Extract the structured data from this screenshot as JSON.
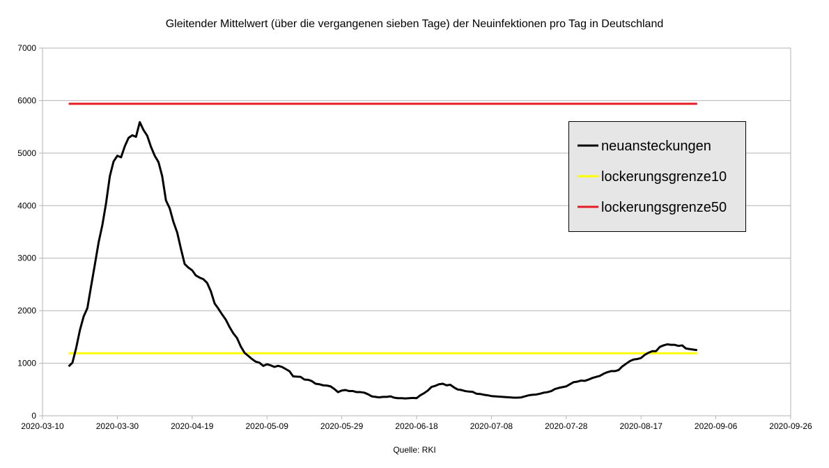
{
  "chart_data": {
    "type": "line",
    "title": "Gleitender Mittelwert (über die vergangenen sieben Tage) der Neuinfektionen pro Tag in Deutschland",
    "source": "Quelle: RKI",
    "xlabel": "",
    "ylabel": "",
    "xlim": [
      "2020-03-10",
      "2020-09-26"
    ],
    "ylim": [
      0,
      7000
    ],
    "x_ticks": [
      "2020-03-10",
      "2020-03-30",
      "2020-04-19",
      "2020-05-09",
      "2020-05-29",
      "2020-06-18",
      "2020-07-08",
      "2020-07-28",
      "2020-08-17",
      "2020-09-06",
      "2020-09-26"
    ],
    "y_ticks": [
      "0",
      "1000",
      "2000",
      "3000",
      "4000",
      "5000",
      "6000",
      "7000"
    ],
    "grid": "horizontal",
    "legend_position": "right",
    "series": [
      {
        "name": "neuansteckungen",
        "color": "#000000",
        "points": [
          [
            "2020-03-17",
            940
          ],
          [
            "2020-03-18",
            1010
          ],
          [
            "2020-03-19",
            1290
          ],
          [
            "2020-03-20",
            1630
          ],
          [
            "2020-03-21",
            1890
          ],
          [
            "2020-03-22",
            2050
          ],
          [
            "2020-03-23",
            2470
          ],
          [
            "2020-03-24",
            2880
          ],
          [
            "2020-03-25",
            3300
          ],
          [
            "2020-03-26",
            3630
          ],
          [
            "2020-03-27",
            4050
          ],
          [
            "2020-03-28",
            4560
          ],
          [
            "2020-03-29",
            4840
          ],
          [
            "2020-03-30",
            4950
          ],
          [
            "2020-03-31",
            4920
          ],
          [
            "2020-04-01",
            5130
          ],
          [
            "2020-04-02",
            5290
          ],
          [
            "2020-04-03",
            5340
          ],
          [
            "2020-04-04",
            5310
          ],
          [
            "2020-04-05",
            5590
          ],
          [
            "2020-04-06",
            5440
          ],
          [
            "2020-04-07",
            5330
          ],
          [
            "2020-04-08",
            5120
          ],
          [
            "2020-04-09",
            4950
          ],
          [
            "2020-04-10",
            4830
          ],
          [
            "2020-04-11",
            4560
          ],
          [
            "2020-04-12",
            4100
          ],
          [
            "2020-04-13",
            3950
          ],
          [
            "2020-04-14",
            3690
          ],
          [
            "2020-04-15",
            3490
          ],
          [
            "2020-04-16",
            3180
          ],
          [
            "2020-04-17",
            2890
          ],
          [
            "2020-04-18",
            2820
          ],
          [
            "2020-04-19",
            2770
          ],
          [
            "2020-04-20",
            2670
          ],
          [
            "2020-04-21",
            2630
          ],
          [
            "2020-04-22",
            2600
          ],
          [
            "2020-04-23",
            2530
          ],
          [
            "2020-04-24",
            2370
          ],
          [
            "2020-04-25",
            2140
          ],
          [
            "2020-04-26",
            2040
          ],
          [
            "2020-04-27",
            1930
          ],
          [
            "2020-04-28",
            1830
          ],
          [
            "2020-04-29",
            1690
          ],
          [
            "2020-04-30",
            1570
          ],
          [
            "2020-05-01",
            1480
          ],
          [
            "2020-05-02",
            1320
          ],
          [
            "2020-05-03",
            1200
          ],
          [
            "2020-05-04",
            1140
          ],
          [
            "2020-05-05",
            1080
          ],
          [
            "2020-05-06",
            1030
          ],
          [
            "2020-05-07",
            1010
          ],
          [
            "2020-05-08",
            950
          ],
          [
            "2020-05-09",
            980
          ],
          [
            "2020-05-10",
            960
          ],
          [
            "2020-05-11",
            930
          ],
          [
            "2020-05-12",
            950
          ],
          [
            "2020-05-13",
            930
          ],
          [
            "2020-05-14",
            890
          ],
          [
            "2020-05-15",
            850
          ],
          [
            "2020-05-16",
            750
          ],
          [
            "2020-05-17",
            745
          ],
          [
            "2020-05-18",
            740
          ],
          [
            "2020-05-19",
            690
          ],
          [
            "2020-05-20",
            685
          ],
          [
            "2020-05-21",
            660
          ],
          [
            "2020-05-22",
            610
          ],
          [
            "2020-05-23",
            600
          ],
          [
            "2020-05-24",
            580
          ],
          [
            "2020-05-25",
            575
          ],
          [
            "2020-05-26",
            560
          ],
          [
            "2020-05-27",
            510
          ],
          [
            "2020-05-28",
            450
          ],
          [
            "2020-05-29",
            480
          ],
          [
            "2020-05-30",
            490
          ],
          [
            "2020-05-31",
            470
          ],
          [
            "2020-06-01",
            470
          ],
          [
            "2020-06-02",
            450
          ],
          [
            "2020-06-03",
            450
          ],
          [
            "2020-06-04",
            440
          ],
          [
            "2020-06-05",
            410
          ],
          [
            "2020-06-06",
            370
          ],
          [
            "2020-06-07",
            360
          ],
          [
            "2020-06-08",
            350
          ],
          [
            "2020-06-09",
            360
          ],
          [
            "2020-06-10",
            360
          ],
          [
            "2020-06-11",
            370
          ],
          [
            "2020-06-12",
            345
          ],
          [
            "2020-06-13",
            335
          ],
          [
            "2020-06-14",
            335
          ],
          [
            "2020-06-15",
            330
          ],
          [
            "2020-06-16",
            335
          ],
          [
            "2020-06-17",
            340
          ],
          [
            "2020-06-18",
            335
          ],
          [
            "2020-06-19",
            390
          ],
          [
            "2020-06-20",
            430
          ],
          [
            "2020-06-21",
            480
          ],
          [
            "2020-06-22",
            550
          ],
          [
            "2020-06-23",
            570
          ],
          [
            "2020-06-24",
            600
          ],
          [
            "2020-06-25",
            610
          ],
          [
            "2020-06-26",
            580
          ],
          [
            "2020-06-27",
            590
          ],
          [
            "2020-06-28",
            540
          ],
          [
            "2020-06-29",
            500
          ],
          [
            "2020-06-30",
            490
          ],
          [
            "2020-07-01",
            470
          ],
          [
            "2020-07-02",
            460
          ],
          [
            "2020-07-03",
            455
          ],
          [
            "2020-07-04",
            420
          ],
          [
            "2020-07-05",
            415
          ],
          [
            "2020-07-06",
            400
          ],
          [
            "2020-07-07",
            390
          ],
          [
            "2020-07-08",
            375
          ],
          [
            "2020-07-09",
            370
          ],
          [
            "2020-07-10",
            365
          ],
          [
            "2020-07-11",
            360
          ],
          [
            "2020-07-12",
            355
          ],
          [
            "2020-07-13",
            350
          ],
          [
            "2020-07-14",
            345
          ],
          [
            "2020-07-15",
            345
          ],
          [
            "2020-07-16",
            350
          ],
          [
            "2020-07-17",
            370
          ],
          [
            "2020-07-18",
            390
          ],
          [
            "2020-07-19",
            400
          ],
          [
            "2020-07-20",
            405
          ],
          [
            "2020-07-21",
            420
          ],
          [
            "2020-07-22",
            440
          ],
          [
            "2020-07-23",
            450
          ],
          [
            "2020-07-24",
            470
          ],
          [
            "2020-07-25",
            510
          ],
          [
            "2020-07-26",
            530
          ],
          [
            "2020-07-27",
            545
          ],
          [
            "2020-07-28",
            560
          ],
          [
            "2020-07-29",
            600
          ],
          [
            "2020-07-30",
            640
          ],
          [
            "2020-07-31",
            650
          ],
          [
            "2020-08-01",
            670
          ],
          [
            "2020-08-02",
            665
          ],
          [
            "2020-08-03",
            690
          ],
          [
            "2020-08-04",
            720
          ],
          [
            "2020-08-05",
            740
          ],
          [
            "2020-08-06",
            760
          ],
          [
            "2020-08-07",
            800
          ],
          [
            "2020-08-08",
            830
          ],
          [
            "2020-08-09",
            850
          ],
          [
            "2020-08-10",
            850
          ],
          [
            "2020-08-11",
            870
          ],
          [
            "2020-08-12",
            940
          ],
          [
            "2020-08-13",
            990
          ],
          [
            "2020-08-14",
            1040
          ],
          [
            "2020-08-15",
            1070
          ],
          [
            "2020-08-16",
            1080
          ],
          [
            "2020-08-17",
            1100
          ],
          [
            "2020-08-18",
            1160
          ],
          [
            "2020-08-19",
            1200
          ],
          [
            "2020-08-20",
            1230
          ],
          [
            "2020-08-21",
            1230
          ],
          [
            "2020-08-22",
            1310
          ],
          [
            "2020-08-23",
            1340
          ],
          [
            "2020-08-24",
            1360
          ],
          [
            "2020-08-25",
            1350
          ],
          [
            "2020-08-26",
            1350
          ],
          [
            "2020-08-27",
            1330
          ],
          [
            "2020-08-28",
            1340
          ],
          [
            "2020-08-29",
            1280
          ],
          [
            "2020-08-30",
            1270
          ],
          [
            "2020-08-31",
            1260
          ],
          [
            "2020-09-01",
            1250
          ]
        ]
      },
      {
        "name": "lockerungsgrenze10",
        "color": "#ffff00",
        "points": [
          [
            "2020-03-17",
            1190
          ],
          [
            "2020-09-01",
            1190
          ]
        ]
      },
      {
        "name": "lockerungsgrenze50",
        "color": "#e51c23",
        "points": [
          [
            "2020-03-17",
            5940
          ],
          [
            "2020-09-01",
            5940
          ]
        ]
      }
    ]
  }
}
